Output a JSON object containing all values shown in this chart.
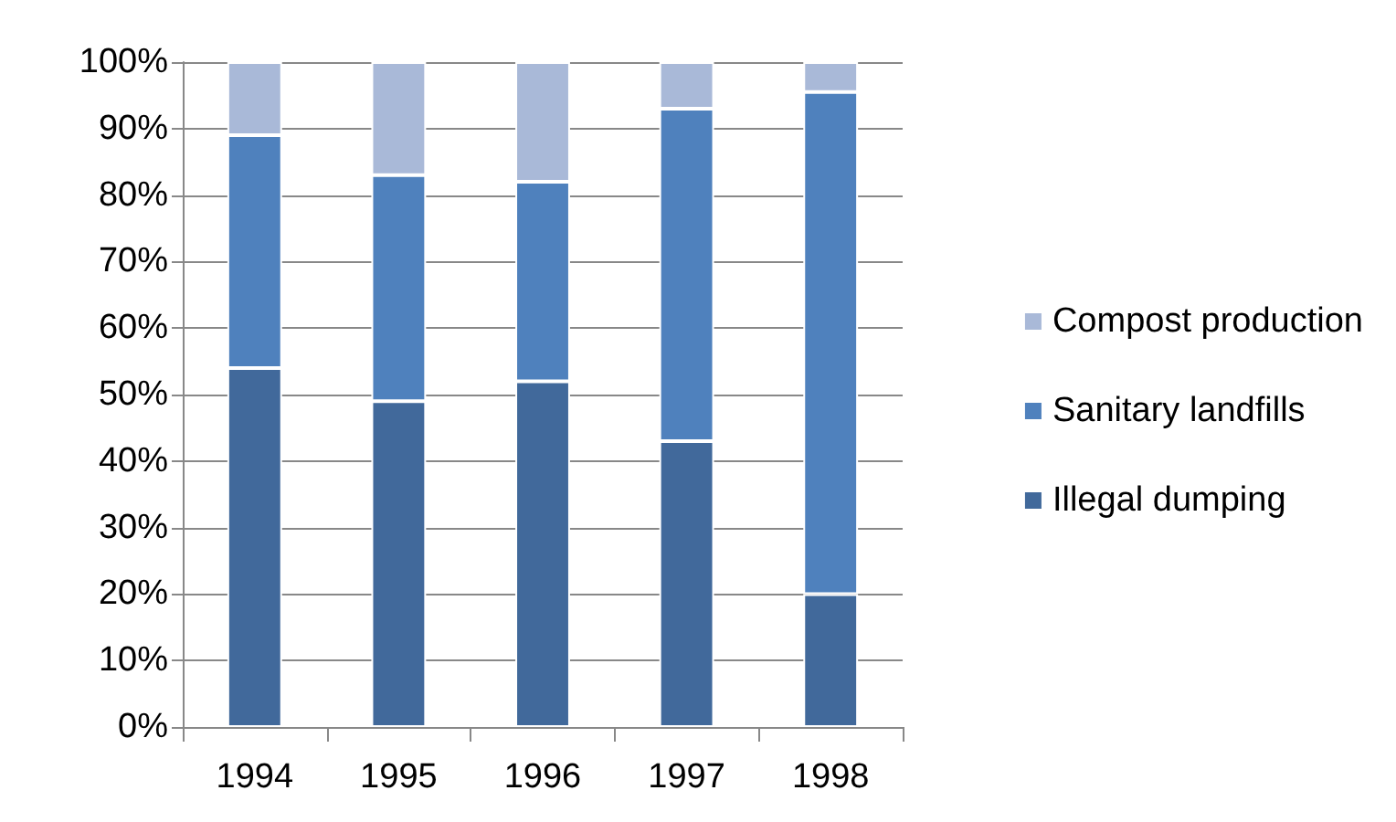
{
  "chart_data": {
    "type": "bar",
    "stacked": true,
    "categories": [
      "1994",
      "1995",
      "1996",
      "1997",
      "1998"
    ],
    "series": [
      {
        "name": "Illegal dumping",
        "color": "#41699b",
        "values": [
          54,
          49,
          52,
          43,
          20
        ]
      },
      {
        "name": "Sanitary landfills",
        "color": "#4f81bd",
        "values": [
          35,
          34,
          30,
          50,
          75.5
        ]
      },
      {
        "name": "Compost production",
        "color": "#a9b9d8",
        "values": [
          11,
          17,
          18,
          7,
          4.5
        ]
      }
    ],
    "ylim": [
      0,
      100
    ],
    "yticks": [
      {
        "value": 0,
        "label": "0%"
      },
      {
        "value": 10,
        "label": "10%"
      },
      {
        "value": 20,
        "label": "20%"
      },
      {
        "value": 30,
        "label": "30%"
      },
      {
        "value": 40,
        "label": "40%"
      },
      {
        "value": 50,
        "label": "50%"
      },
      {
        "value": 60,
        "label": "60%"
      },
      {
        "value": 70,
        "label": "70%"
      },
      {
        "value": 80,
        "label": "80%"
      },
      {
        "value": 90,
        "label": "90%"
      },
      {
        "value": 100,
        "label": "100%"
      }
    ],
    "grid": "y",
    "legend": "right"
  }
}
